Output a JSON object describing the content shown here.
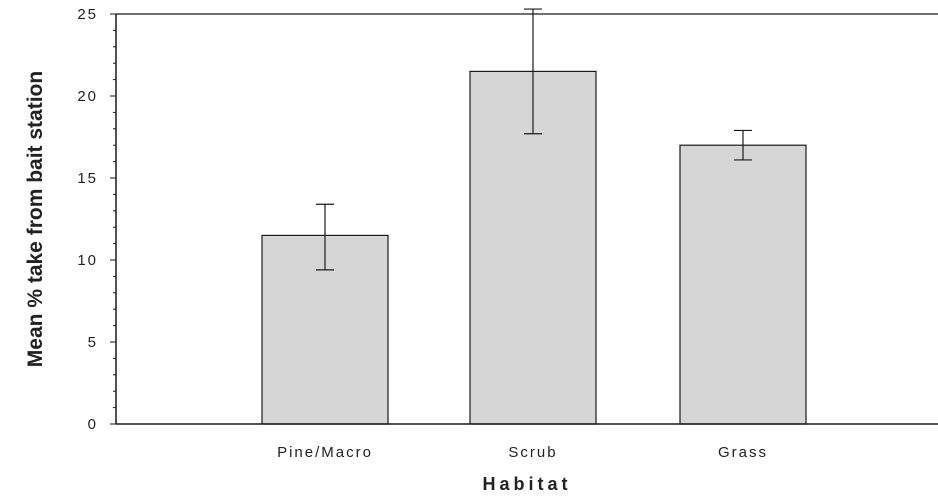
{
  "chart_data": {
    "type": "bar",
    "title": "",
    "xlabel": "Habitat",
    "ylabel": "Mean % take from bait station",
    "categories": [
      "Pine/Macro",
      "Scrub",
      "Grass"
    ],
    "values": [
      11.5,
      21.5,
      17.0
    ],
    "error_low": [
      9.4,
      17.7,
      16.1
    ],
    "error_high": [
      13.4,
      25.3,
      17.9
    ],
    "ylim": [
      0,
      25
    ],
    "yticks": [
      0,
      5,
      10,
      15,
      20,
      25
    ],
    "grid": false,
    "legend": "none",
    "bar_color": "#d6d6d6",
    "bar_edge_color": "#1a1a1a",
    "axis_color": "#1a1a1a"
  }
}
